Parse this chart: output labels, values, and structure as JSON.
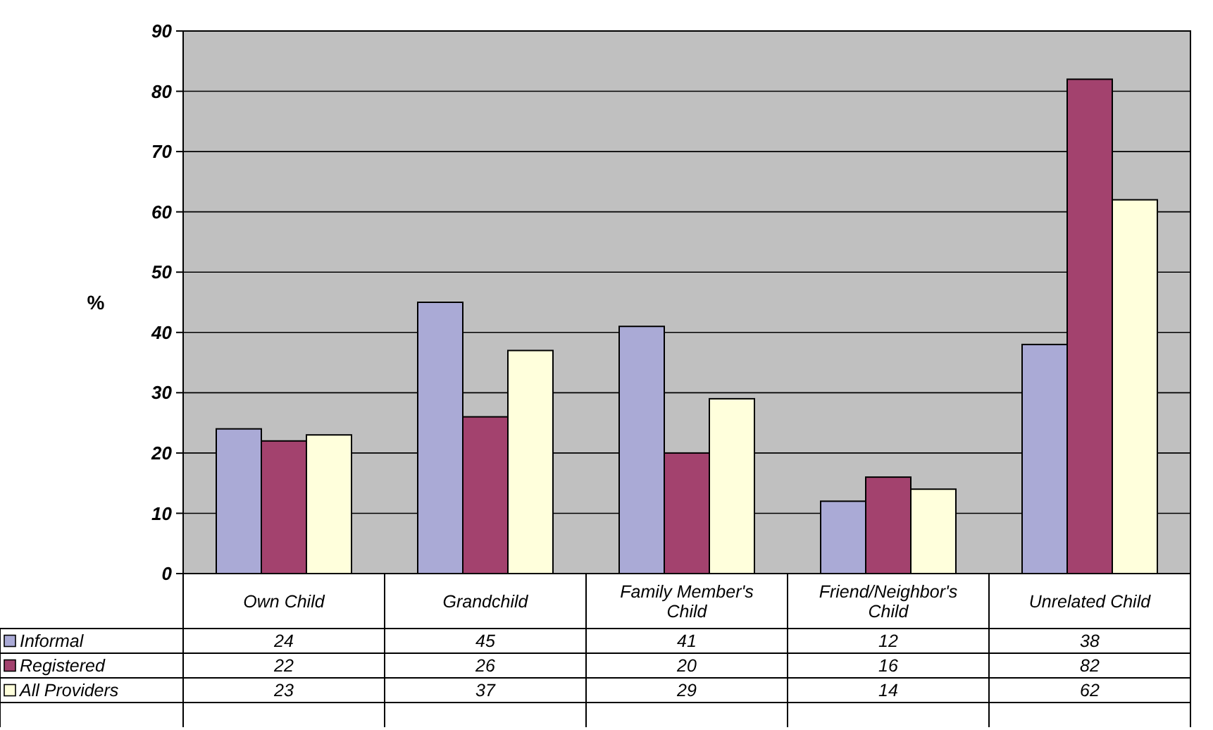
{
  "chart_data": {
    "type": "bar",
    "ylabel": "%",
    "categories": [
      "Own Child",
      "Grandchild",
      "Family Member's Child",
      "Friend/Neighbor's Child",
      "Unrelated Child"
    ],
    "series": [
      {
        "name": "Informal",
        "color": "#aaaad6",
        "values": [
          24,
          45,
          41,
          12,
          38
        ]
      },
      {
        "name": "Registered",
        "color": "#a3426e",
        "values": [
          22,
          26,
          20,
          16,
          82
        ]
      },
      {
        "name": "All Providers",
        "color": "#ffffdc",
        "values": [
          23,
          37,
          29,
          14,
          62
        ]
      }
    ],
    "ylim": [
      0,
      90
    ],
    "yticks": [
      0,
      10,
      20,
      30,
      40,
      50,
      60,
      70,
      80,
      90
    ],
    "grid": "y",
    "legend": "bottom",
    "data_labels": true
  }
}
